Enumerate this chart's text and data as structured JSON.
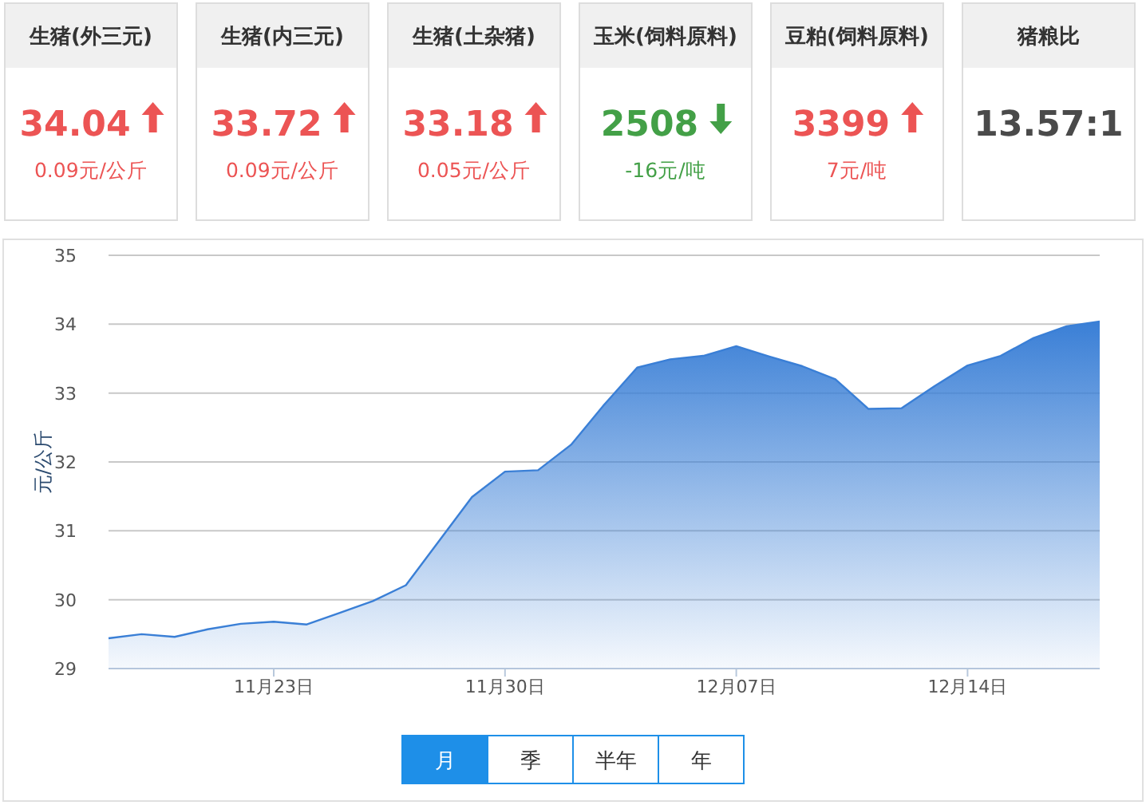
{
  "chart_data": [
    {
      "type": "other",
      "categories": [
        "生猪(外三元)",
        "生猪(内三元)",
        "生猪(土杂猪)",
        "玉米(饲料原料)",
        "豆粕(饲料原料)",
        "猪粮比"
      ],
      "value_labels": [
        "34.04",
        "33.72",
        "33.18",
        "2508",
        "3399",
        "13.57:1"
      ],
      "annotations": [
        "0.09元/公斤",
        "0.09元/公斤",
        "0.05元/公斤",
        "-16元/吨",
        "7元/吨"
      ]
    },
    {
      "type": "area",
      "ylabel": "元/公斤",
      "x": [
        "--11-18",
        "--11-19",
        "--11-20",
        "--11-21",
        "--11-22",
        "--11-23",
        "--11-24",
        "--11-25",
        "--11-26",
        "--11-27",
        "--11-28",
        "--11-29",
        "--11-30",
        "--12-01",
        "--12-02",
        "--12-03",
        "--12-04",
        "--12-05",
        "--12-06",
        "--12-07",
        "--12-08",
        "--12-09",
        "--12-10",
        "--12-11",
        "--12-12",
        "--12-13",
        "--12-14",
        "--12-15",
        "--12-16",
        "--12-17",
        "--12-18"
      ],
      "values": [
        29.44,
        29.5,
        29.46,
        29.57,
        29.65,
        29.68,
        29.64,
        29.81,
        29.98,
        30.21,
        30.85,
        31.49,
        31.86,
        31.88,
        32.25,
        32.83,
        33.37,
        33.49,
        33.54,
        33.68,
        33.53,
        33.39,
        33.2,
        32.77,
        32.78,
        33.1,
        33.4,
        33.54,
        33.8,
        33.97,
        34.04
      ],
      "color": "#3a7fd6",
      "xlim": [
        "--11-18",
        "--12-18"
      ],
      "ylim": [
        29,
        35
      ],
      "xticks": [
        {
          "value": "--11-23",
          "label": "11月23日"
        },
        {
          "value": "--11-30",
          "label": "11月30日"
        },
        {
          "value": "--12-07",
          "label": "12月07日"
        },
        {
          "value": "--12-14",
          "label": "12月14日"
        }
      ],
      "yticks": [
        29,
        30,
        31,
        32,
        33,
        34,
        35
      ],
      "grid": "y",
      "annotations": [
        "月",
        "季",
        "半年",
        "年"
      ]
    }
  ]
}
